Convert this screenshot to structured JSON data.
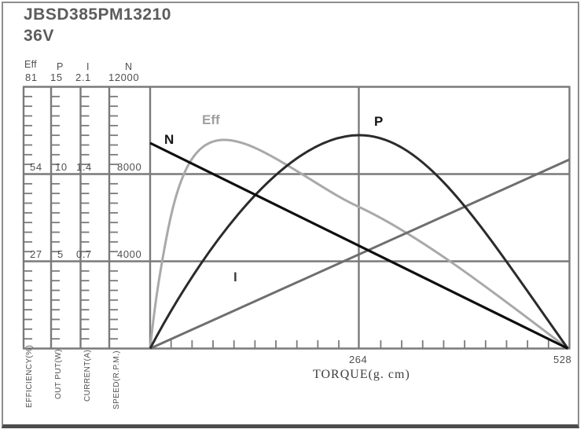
{
  "title": {
    "model": "JBSD385PM13210",
    "voltage": "36V"
  },
  "left_axes": {
    "headers": [
      "Eff",
      "P",
      "I",
      "N"
    ],
    "top_values": [
      "81",
      "15",
      "2.1",
      "12000"
    ],
    "mid_values": [
      "54",
      "10",
      "1.4",
      "8000"
    ],
    "low_values": [
      "27",
      "5",
      "0.7",
      "4000"
    ],
    "unit_labels": [
      "EFFICIENCY(%)",
      "OUT PUT(W)",
      "CURRENT(A)",
      "SPEED(R.P.M.)"
    ]
  },
  "x_axis": {
    "label": "TORQUE(g. cm)",
    "mid_tick": "264",
    "end_tick": "528"
  },
  "curve_labels": {
    "speed": "N",
    "efficiency": "Eff",
    "power": "P",
    "current": "I"
  },
  "colors": {
    "speed_line": "#0f0f0f",
    "power_line": "#2b2b2b",
    "efficiency_line": "#a9a9a9",
    "current_line": "#6e6e6e",
    "grid": "#7a7a7a",
    "text": "#4f4f4f"
  },
  "chart_data": {
    "type": "line",
    "title": "JBSD385PM13210 36V motor performance curves",
    "xlabel": "TORQUE(g. cm)",
    "x_range": [
      0,
      528
    ],
    "x_tick_labels": [
      264,
      528
    ],
    "x_minor_ticks_per_half": 10,
    "grid": true,
    "legend_position": "inline curve labels",
    "y_axes": [
      {
        "symbol": "Eff",
        "name": "EFFICIENCY(%)",
        "range": [
          0,
          81
        ],
        "ticks": [
          27,
          54,
          81
        ]
      },
      {
        "symbol": "P",
        "name": "OUT PUT(W)",
        "range": [
          0,
          15
        ],
        "ticks": [
          5,
          10,
          15
        ]
      },
      {
        "symbol": "I",
        "name": "CURRENT(A)",
        "range": [
          0,
          2.1
        ],
        "ticks": [
          0.7,
          1.4,
          2.1
        ]
      },
      {
        "symbol": "N",
        "name": "SPEED(R.P.M.)",
        "range": [
          0,
          12000
        ],
        "ticks": [
          4000,
          8000,
          12000
        ]
      }
    ],
    "series": [
      {
        "name": "N",
        "axis": "SPEED(R.P.M.)",
        "shape": "straight line",
        "points": [
          [
            0,
            9400
          ],
          [
            264,
            4700
          ],
          [
            528,
            0
          ]
        ]
      },
      {
        "name": "I",
        "axis": "CURRENT(A)",
        "shape": "straight line",
        "points": [
          [
            0,
            0
          ],
          [
            264,
            0.75
          ],
          [
            528,
            1.51
          ]
        ]
      },
      {
        "name": "P",
        "axis": "OUT PUT(W)",
        "shape": "skewed parabola, max ~12.2 W near 264 g.cm",
        "points": [
          [
            0,
            0
          ],
          [
            66,
            4.4
          ],
          [
            132,
            8.1
          ],
          [
            198,
            10.9
          ],
          [
            264,
            12.2
          ],
          [
            330,
            11.0
          ],
          [
            396,
            8.3
          ],
          [
            462,
            4.6
          ],
          [
            528,
            0
          ]
        ]
      },
      {
        "name": "Eff",
        "axis": "EFFICIENCY(%)",
        "shape": "steep rise, peak ~64% near 94 g.cm, slow decline to 0",
        "points": [
          [
            0,
            0
          ],
          [
            13,
            27
          ],
          [
            34,
            54
          ],
          [
            94,
            64
          ],
          [
            264,
            44
          ],
          [
            400,
            22
          ],
          [
            528,
            0
          ]
        ]
      }
    ]
  }
}
